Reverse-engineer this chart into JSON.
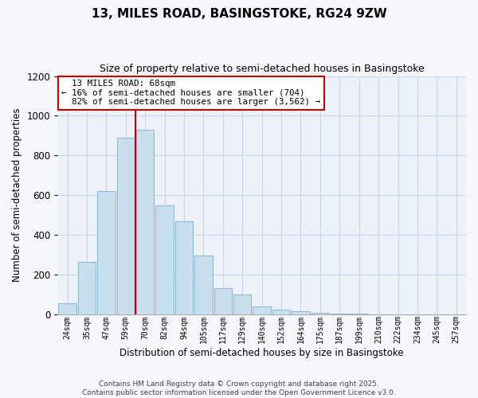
{
  "title": "13, MILES ROAD, BASINGSTOKE, RG24 9ZW",
  "subtitle": "Size of property relative to semi-detached houses in Basingstoke",
  "xlabel": "Distribution of semi-detached houses by size in Basingstoke",
  "ylabel": "Number of semi-detached properties",
  "bar_labels": [
    "24sqm",
    "35sqm",
    "47sqm",
    "59sqm",
    "70sqm",
    "82sqm",
    "94sqm",
    "105sqm",
    "117sqm",
    "129sqm",
    "140sqm",
    "152sqm",
    "164sqm",
    "175sqm",
    "187sqm",
    "199sqm",
    "210sqm",
    "222sqm",
    "234sqm",
    "245sqm",
    "257sqm"
  ],
  "bar_values": [
    55,
    265,
    620,
    890,
    930,
    550,
    470,
    295,
    130,
    100,
    40,
    25,
    15,
    8,
    5,
    4,
    0,
    0,
    0,
    0,
    0
  ],
  "bar_color": "#c8dff0",
  "bar_edge_color": "#8ab4d4",
  "vline_color": "#cc0000",
  "annotation_box_edge_color": "#cc0000",
  "property_label": "13 MILES ROAD: 68sqm",
  "pct_smaller": "16%",
  "pct_larger": "82%",
  "count_smaller": "704",
  "count_larger": "3,562",
  "ylim": [
    0,
    1200
  ],
  "yticks": [
    0,
    200,
    400,
    600,
    800,
    1000,
    1200
  ],
  "grid_color": "#c8d4e8",
  "bg_color": "#edf2f9",
  "fig_bg_color": "#f5f7fa",
  "footer1": "Contains HM Land Registry data © Crown copyright and database right 2025.",
  "footer2": "Contains public sector information licensed under the Open Government Licence v3.0."
}
